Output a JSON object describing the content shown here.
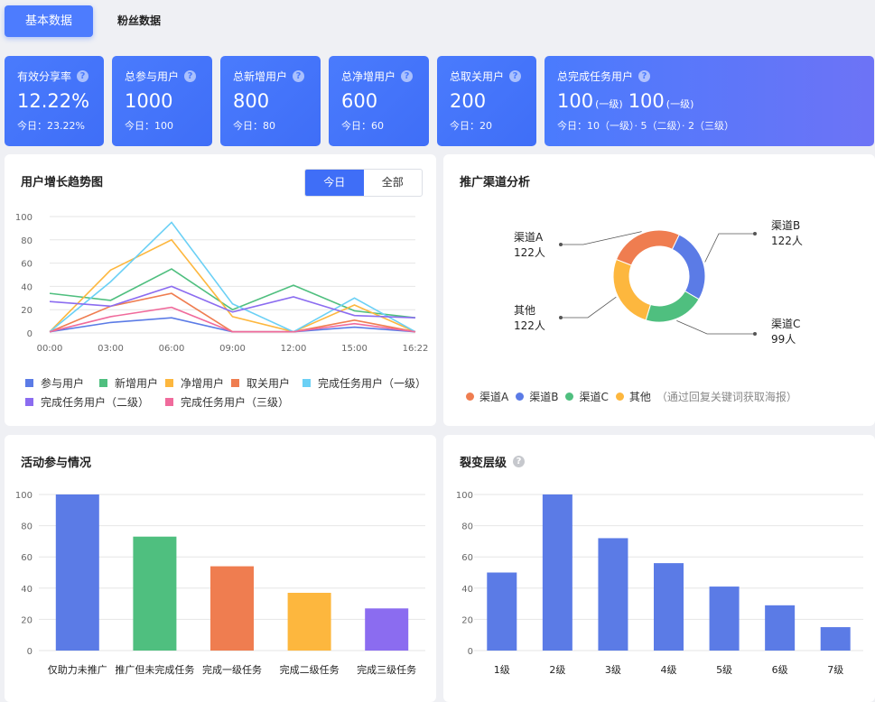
{
  "tabs": [
    {
      "label": "基本数据",
      "active": true
    },
    {
      "label": "粉丝数据",
      "active": false
    }
  ],
  "stats": [
    {
      "label": "有效分享率",
      "value": "12.22%",
      "sub": "今日：23.22%"
    },
    {
      "label": "总参与用户",
      "value": "1000",
      "sub": "今日：100"
    },
    {
      "label": "总新增用户",
      "value": "800",
      "sub": "今日：80"
    },
    {
      "label": "总净增用户",
      "value": "600",
      "sub": "今日：60"
    },
    {
      "label": "总取关用户",
      "value": "200",
      "sub": "今日：20"
    }
  ],
  "task_stat": {
    "label": "总完成任务用户",
    "value1": "100",
    "unit1": "(一级)",
    "value2": "100",
    "unit2": "(一级)",
    "sub": "今日：10（一级）· 5（二级）· 2（三级）"
  },
  "growth": {
    "title": "用户增长趋势图",
    "toggle_today": "今日",
    "toggle_all": "全部"
  },
  "channel": {
    "title": "推广渠道分析",
    "legend_note": "（通过回复关键词获取海报）"
  },
  "activity": {
    "title": "活动参与情况"
  },
  "fission": {
    "title": "裂变层级",
    "help_icon": "question-icon"
  },
  "colors": {
    "blue": "#5b7be6",
    "green": "#4fbf7f",
    "yellow": "#fdb73e",
    "orange": "#ef7d50",
    "cyan": "#6bd0f5",
    "purple": "#8b6cf0",
    "pink": "#f06b9c",
    "accent": "#3f6ef7"
  },
  "chart_data": [
    {
      "type": "line",
      "x": [
        "00:00",
        "03:00",
        "06:00",
        "09:00",
        "12:00",
        "15:00",
        "16:22"
      ],
      "ylim": [
        0,
        100
      ],
      "yticks": [
        0,
        20,
        40,
        60,
        80,
        100
      ],
      "series": [
        {
          "name": "参与用户",
          "color": "#5b7be6",
          "values": [
            1,
            9,
            13,
            1,
            1,
            5,
            1
          ]
        },
        {
          "name": "新增用户",
          "color": "#4fbf7f",
          "values": [
            34,
            28,
            55,
            20,
            41,
            19,
            13
          ]
        },
        {
          "name": "净增用户",
          "color": "#fdb73e",
          "values": [
            1,
            54,
            80,
            14,
            1,
            24,
            1
          ]
        },
        {
          "name": "取关用户",
          "color": "#ef7d50",
          "values": [
            1,
            23,
            34,
            1,
            1,
            11,
            1
          ]
        },
        {
          "name": "完成任务用户（一级）",
          "color": "#6bd0f5",
          "values": [
            1,
            44,
            95,
            25,
            1,
            30,
            1
          ]
        },
        {
          "name": "完成任务用户（二级）",
          "color": "#8b6cf0",
          "values": [
            27,
            23,
            40,
            18,
            31,
            15,
            13
          ]
        },
        {
          "name": "完成任务用户（三级）",
          "color": "#f06b9c",
          "values": [
            1,
            14,
            22,
            1,
            1,
            8,
            1
          ]
        }
      ]
    },
    {
      "type": "pie",
      "series": [
        {
          "name": "渠道A",
          "value": 122,
          "label": "122人",
          "color": "#ef7d50"
        },
        {
          "name": "渠道B",
          "value": 122,
          "label": "122人",
          "color": "#5b7be6"
        },
        {
          "name": "渠道C",
          "value": 99,
          "label": "99人",
          "color": "#4fbf7f"
        },
        {
          "name": "其他",
          "value": 122,
          "label": "122人",
          "color": "#fdb73e"
        }
      ]
    },
    {
      "type": "bar",
      "categories": [
        "仅助力未推广",
        "推广但未完成任务",
        "完成一级任务",
        "完成二级任务",
        "完成三级任务"
      ],
      "values": [
        100,
        73,
        54,
        37,
        27
      ],
      "colors": [
        "#5b7be6",
        "#4fbf7f",
        "#ef7d50",
        "#fdb73e",
        "#8b6cf0"
      ],
      "ylim": [
        0,
        100
      ],
      "yticks": [
        0,
        20,
        40,
        60,
        80,
        100
      ]
    },
    {
      "type": "bar",
      "categories": [
        "1级",
        "2级",
        "3级",
        "4级",
        "5级",
        "6级",
        "7级"
      ],
      "values": [
        50,
        100,
        72,
        56,
        41,
        29,
        15
      ],
      "color": "#5b7be6",
      "ylim": [
        0,
        100
      ],
      "yticks": [
        0,
        20,
        40,
        60,
        80,
        100
      ]
    }
  ]
}
